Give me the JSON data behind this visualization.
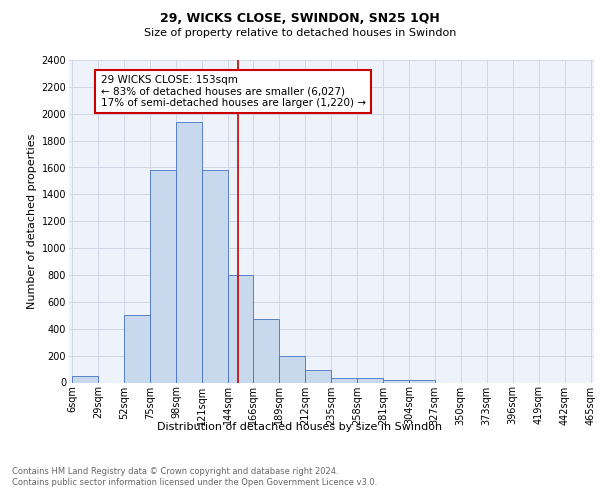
{
  "title1": "29, WICKS CLOSE, SWINDON, SN25 1QH",
  "title2": "Size of property relative to detached houses in Swindon",
  "xlabel": "Distribution of detached houses by size in Swindon",
  "ylabel": "Number of detached properties",
  "footnote": "Contains HM Land Registry data © Crown copyright and database right 2024.\nContains public sector information licensed under the Open Government Licence v3.0.",
  "bin_labels": [
    "6sqm",
    "29sqm",
    "52sqm",
    "75sqm",
    "98sqm",
    "121sqm",
    "144sqm",
    "166sqm",
    "189sqm",
    "212sqm",
    "235sqm",
    "258sqm",
    "281sqm",
    "304sqm",
    "327sqm",
    "350sqm",
    "373sqm",
    "396sqm",
    "419sqm",
    "442sqm",
    "465sqm"
  ],
  "bar_values": [
    50,
    0,
    500,
    1580,
    1940,
    1580,
    800,
    470,
    195,
    90,
    35,
    30,
    22,
    20,
    0,
    0,
    0,
    0,
    0,
    0
  ],
  "bar_color": "#c9d9ed",
  "bar_edge_color": "#4472c4",
  "vline_x": 153,
  "vline_color": "#cc0000",
  "annotation_text": "29 WICKS CLOSE: 153sqm\n← 83% of detached houses are smaller (6,027)\n17% of semi-detached houses are larger (1,220) →",
  "annotation_box_color": "#ffffff",
  "annotation_box_edge": "#cc0000",
  "ylim": [
    0,
    2400
  ],
  "yticks": [
    0,
    200,
    400,
    600,
    800,
    1000,
    1200,
    1400,
    1600,
    1800,
    2000,
    2200,
    2400
  ],
  "grid_color": "#d0d8e8",
  "background_color": "#eef2fa",
  "title1_fontsize": 9,
  "title2_fontsize": 8,
  "ylabel_fontsize": 8,
  "xlabel_fontsize": 8,
  "tick_fontsize": 7,
  "footnote_fontsize": 6,
  "annot_fontsize": 7.5
}
